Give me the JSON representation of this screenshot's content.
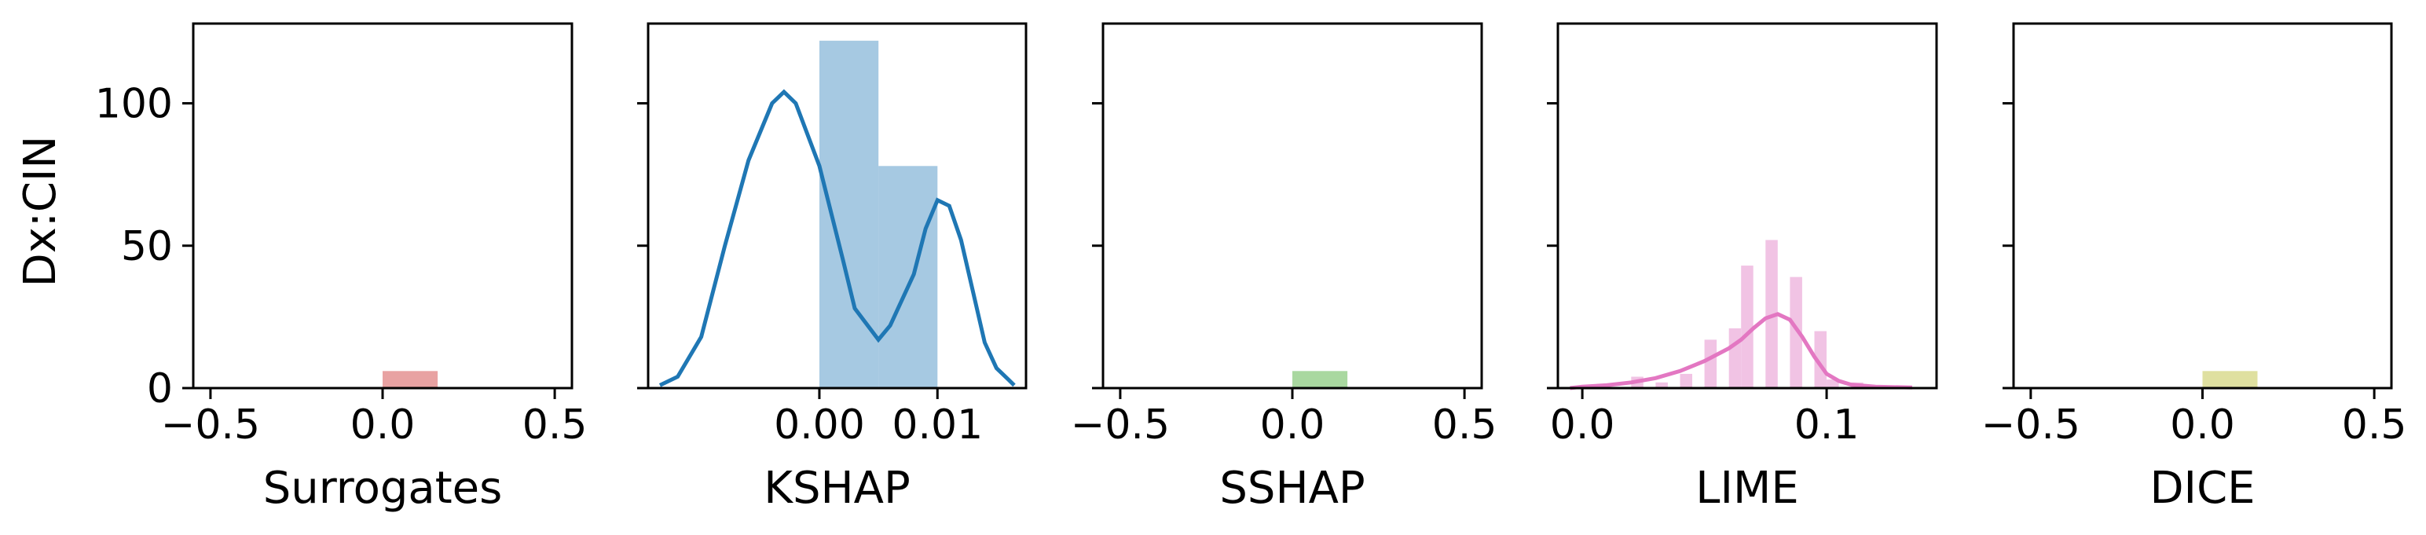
{
  "figure": {
    "ylabel": "Dx:CIN"
  },
  "chart_data": [
    {
      "type": "bar",
      "xlabel": "Surrogates",
      "ylabel": "Dx:CIN",
      "xlim": [
        -0.55,
        0.55
      ],
      "ylim": [
        0,
        128
      ],
      "xticks": [
        -0.5,
        0.0,
        0.5
      ],
      "xtick_labels": [
        "−0.5",
        "0.0",
        "0.5"
      ],
      "yticks": [
        0,
        50,
        100
      ],
      "ytick_labels": [
        "0",
        "50",
        "100"
      ],
      "bins": [
        {
          "x0": 0.0,
          "x1": 0.16,
          "count": 6
        }
      ],
      "kde": [],
      "color": "#e8a2a2"
    },
    {
      "type": "bar",
      "xlabel": "KSHAP",
      "xlim": [
        -0.0145,
        0.0175
      ],
      "ylim": [
        0,
        128
      ],
      "xticks": [
        0.0,
        0.01
      ],
      "xtick_labels": [
        "0.00",
        "0.01"
      ],
      "yticks": [
        0,
        50,
        100
      ],
      "ytick_labels": [
        "",
        "",
        ""
      ],
      "bins": [
        {
          "x0": 0.0,
          "x1": 0.005,
          "count": 122
        },
        {
          "x0": 0.005,
          "x1": 0.01,
          "count": 78
        }
      ],
      "kde": [
        [
          -0.0135,
          1
        ],
        [
          -0.012,
          4
        ],
        [
          -0.01,
          18
        ],
        [
          -0.008,
          50
        ],
        [
          -0.006,
          80
        ],
        [
          -0.004,
          100
        ],
        [
          -0.003,
          104
        ],
        [
          -0.002,
          100
        ],
        [
          0.0,
          78
        ],
        [
          0.002,
          45
        ],
        [
          0.003,
          28
        ],
        [
          0.005,
          17
        ],
        [
          0.006,
          22
        ],
        [
          0.008,
          40
        ],
        [
          0.009,
          56
        ],
        [
          0.01,
          66
        ],
        [
          0.011,
          64
        ],
        [
          0.012,
          52
        ],
        [
          0.013,
          34
        ],
        [
          0.014,
          16
        ],
        [
          0.015,
          7
        ],
        [
          0.016,
          3
        ],
        [
          0.0165,
          1
        ]
      ],
      "color": "#a6c9e2",
      "line_color": "#1f77b4"
    },
    {
      "type": "bar",
      "xlabel": "SSHAP",
      "xlim": [
        -0.55,
        0.55
      ],
      "ylim": [
        0,
        128
      ],
      "xticks": [
        -0.5,
        0.0,
        0.5
      ],
      "xtick_labels": [
        "−0.5",
        "0.0",
        "0.5"
      ],
      "yticks": [
        0,
        50,
        100
      ],
      "ytick_labels": [
        "",
        "",
        ""
      ],
      "bins": [
        {
          "x0": 0.0,
          "x1": 0.16,
          "count": 6
        }
      ],
      "kde": [],
      "color": "#a9d8a0"
    },
    {
      "type": "bar",
      "xlabel": "LIME",
      "xlim": [
        -0.01,
        0.145
      ],
      "ylim": [
        0,
        128
      ],
      "xticks": [
        0.0,
        0.1
      ],
      "xtick_labels": [
        "0.0",
        "0.1"
      ],
      "yticks": [
        0,
        50,
        100
      ],
      "ytick_labels": [
        "",
        "",
        ""
      ],
      "bins": [
        {
          "x0": 0.02,
          "x1": 0.025,
          "count": 4
        },
        {
          "x0": 0.03,
          "x1": 0.035,
          "count": 2
        },
        {
          "x0": 0.04,
          "x1": 0.045,
          "count": 5
        },
        {
          "x0": 0.05,
          "x1": 0.055,
          "count": 17
        },
        {
          "x0": 0.06,
          "x1": 0.065,
          "count": 21
        },
        {
          "x0": 0.065,
          "x1": 0.07,
          "count": 43
        },
        {
          "x0": 0.075,
          "x1": 0.08,
          "count": 52
        },
        {
          "x0": 0.085,
          "x1": 0.09,
          "count": 39
        },
        {
          "x0": 0.095,
          "x1": 0.1,
          "count": 20
        },
        {
          "x0": 0.1,
          "x1": 0.105,
          "count": 3
        },
        {
          "x0": 0.11,
          "x1": 0.115,
          "count": 2
        }
      ],
      "kde": [
        [
          -0.005,
          0
        ],
        [
          0.0,
          0.5
        ],
        [
          0.01,
          1
        ],
        [
          0.02,
          2
        ],
        [
          0.03,
          3.5
        ],
        [
          0.04,
          6
        ],
        [
          0.05,
          9.5
        ],
        [
          0.06,
          14
        ],
        [
          0.065,
          17
        ],
        [
          0.07,
          21
        ],
        [
          0.075,
          24.5
        ],
        [
          0.08,
          26
        ],
        [
          0.085,
          24
        ],
        [
          0.09,
          18
        ],
        [
          0.095,
          11
        ],
        [
          0.1,
          5
        ],
        [
          0.105,
          2.5
        ],
        [
          0.11,
          1.2
        ],
        [
          0.12,
          0.5
        ],
        [
          0.135,
          0.2
        ]
      ],
      "color": "#f1c3e4",
      "line_color": "#e377c2"
    },
    {
      "type": "bar",
      "xlabel": "DICE",
      "xlim": [
        -0.55,
        0.55
      ],
      "ylim": [
        0,
        128
      ],
      "xticks": [
        -0.5,
        0.0,
        0.5
      ],
      "xtick_labels": [
        "−0.5",
        "0.0",
        "0.5"
      ],
      "yticks": [
        0,
        50,
        100
      ],
      "ytick_labels": [
        "",
        "",
        ""
      ],
      "bins": [
        {
          "x0": 0.0,
          "x1": 0.16,
          "count": 6
        }
      ],
      "kde": [],
      "color": "#dfe0a0"
    }
  ]
}
